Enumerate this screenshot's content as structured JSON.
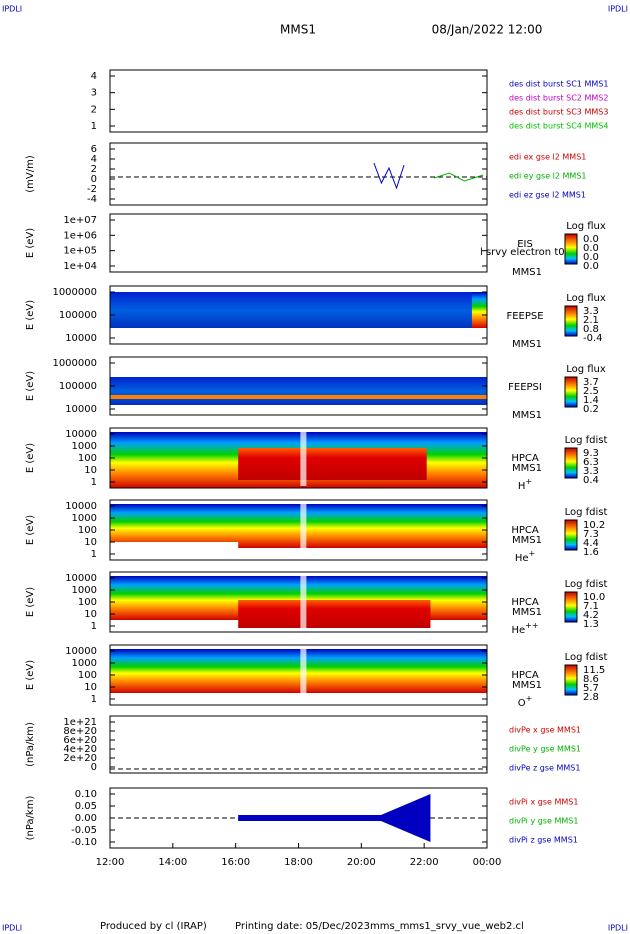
{
  "header": {
    "corner_tl": "IPDLI",
    "corner_tr": "IPDLI",
    "title": "MMS1",
    "date": "08/Jan/2022 12:00"
  },
  "xticks": [
    "12:00",
    "14:00",
    "16:00",
    "18:00",
    "20:00",
    "22:00",
    "00:00"
  ],
  "panels": [
    {
      "ylabel": "",
      "yticks": [
        "4",
        "3",
        "2",
        "1"
      ],
      "legend": [
        {
          "text": "des dist burst SC1 MMS1",
          "color": "#0000c0"
        },
        {
          "text": "des dist burst SC2 MMS2",
          "color": "#c000c0"
        },
        {
          "text": "des dist burst SC3 MMS3",
          "color": "#c00000"
        },
        {
          "text": "des dist burst SC4 MMS4",
          "color": "#00c000"
        }
      ]
    },
    {
      "ylabel": "(mV/m)",
      "yticks": [
        "6",
        "4",
        "2",
        "0",
        "-2",
        "-4"
      ],
      "legend": [
        {
          "text": "edi ex gse l2 MMS1",
          "color": "#d00000"
        },
        {
          "text": "edi ey gse l2 MMS1",
          "color": "#00b000"
        },
        {
          "text": "edi ez gse l2 MMS1",
          "color": "#0000c0"
        }
      ]
    },
    {
      "ylabel": "E (eV)",
      "yticks": [
        "1e+07",
        "1e+06",
        "1e+05",
        "1e+04"
      ],
      "instrument": [
        "EIS",
        "MMS1"
      ],
      "overlay": "l srvy electron t0",
      "cbar_title": "Log flux",
      "cbar": [
        "0.0",
        "0.0",
        "0.0",
        "0.0"
      ]
    },
    {
      "ylabel": "E (eV)",
      "yticks": [
        "1000000",
        "100000",
        "10000"
      ],
      "instrument": [
        "FEEPSE",
        "MMS1"
      ],
      "cbar_title": "Log flux",
      "cbar": [
        "3.3",
        "2.1",
        "0.8",
        "-0.4"
      ]
    },
    {
      "ylabel": "E (eV)",
      "yticks": [
        "1000000",
        "100000",
        "10000"
      ],
      "instrument": [
        "FEEPSI",
        "MMS1"
      ],
      "cbar_title": "Log flux",
      "cbar": [
        "3.7",
        "2.5",
        "1.4",
        "0.2"
      ]
    },
    {
      "ylabel": "E (eV)",
      "yticks": [
        "10000",
        "1000",
        "100",
        "10",
        "1"
      ],
      "instrument": [
        "HPCA",
        "MMS1"
      ],
      "species": {
        "base": "H",
        "sup": "+"
      },
      "cbar_title": "Log fdist",
      "cbar": [
        "9.3",
        "6.3",
        "3.3",
        "0.4"
      ]
    },
    {
      "ylabel": "E (eV)",
      "yticks": [
        "10000",
        "1000",
        "100",
        "10",
        "1"
      ],
      "instrument": [
        "HPCA",
        "MMS1"
      ],
      "species": {
        "base": "He",
        "sup": "+"
      },
      "cbar_title": "Log fdist",
      "cbar": [
        "10.2",
        "7.3",
        "4.4",
        "1.6"
      ]
    },
    {
      "ylabel": "E (eV)",
      "yticks": [
        "10000",
        "1000",
        "100",
        "10",
        "1"
      ],
      "instrument": [
        "HPCA",
        "MMS1"
      ],
      "species": {
        "base": "He",
        "sup": "++"
      },
      "cbar_title": "Log fdist",
      "cbar": [
        "10.0",
        "7.1",
        "4.2",
        "1.3"
      ]
    },
    {
      "ylabel": "E (eV)",
      "yticks": [
        "10000",
        "1000",
        "100",
        "10",
        "1"
      ],
      "instrument": [
        "HPCA",
        "MMS1"
      ],
      "species": {
        "base": "O",
        "sup": "+"
      },
      "cbar_title": "Log fdist",
      "cbar": [
        "11.5",
        "8.6",
        "5.7",
        "2.8"
      ]
    },
    {
      "ylabel": "(nPa/km)",
      "yticks": [
        "1e+21",
        "8e+20",
        "6e+20",
        "4e+20",
        "2e+20",
        "0"
      ],
      "legend": [
        {
          "text": "divPe x gse MMS1",
          "color": "#d00000"
        },
        {
          "text": "divPe y gse MMS1",
          "color": "#00b000"
        },
        {
          "text": "divPe z gse MMS1",
          "color": "#0000c0"
        }
      ]
    },
    {
      "ylabel": "(nPa/km)",
      "yticks": [
        "0.10",
        "0.05",
        "0.00",
        "-0.05",
        "-0.10"
      ],
      "legend": [
        {
          "text": "divPi x gse MMS1",
          "color": "#d00000"
        },
        {
          "text": "divPi y gse MMS1",
          "color": "#00b000"
        },
        {
          "text": "divPi z gse MMS1",
          "color": "#0000c0"
        }
      ]
    }
  ],
  "footer": {
    "corner_bl": "IPDLI",
    "corner_br": "IPDLI",
    "credit": "Produced by cl (IRAP)",
    "printing": "Printing date: 05/Dec/2023",
    "file": "mms_mms1_srvy_vue_web2.cl"
  }
}
